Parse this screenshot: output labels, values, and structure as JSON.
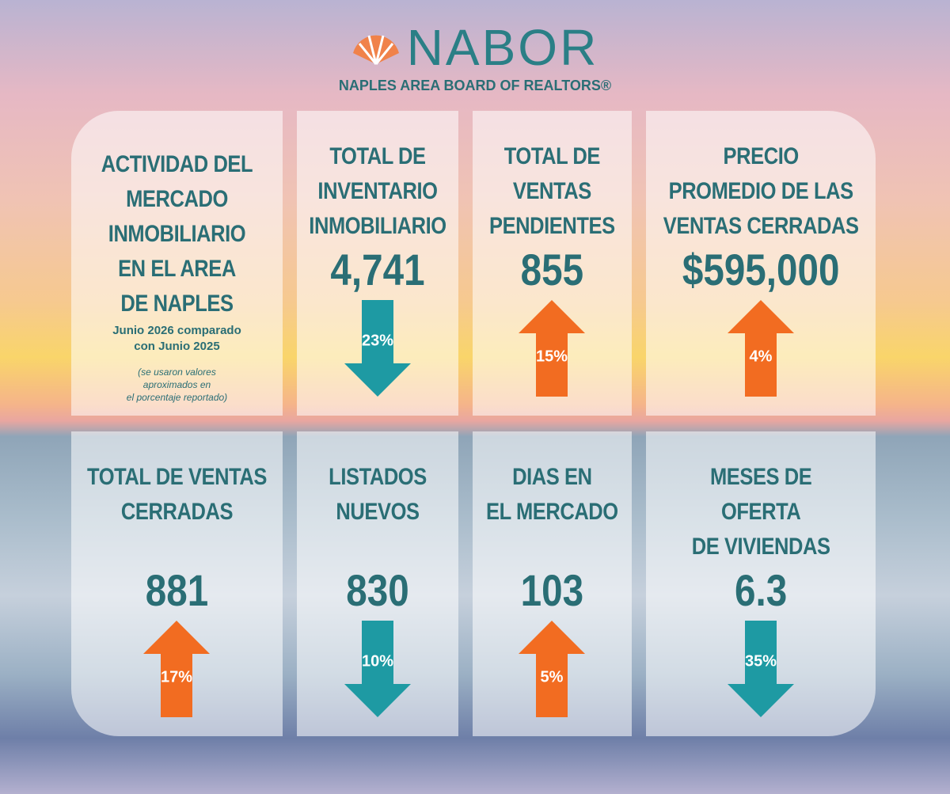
{
  "logo": {
    "name": "NABOR",
    "subtitle": "NAPLES AREA BOARD OF REALTORS®"
  },
  "intro": {
    "title": [
      "ACTIVIDAD DEL",
      "MERCADO",
      "INMOBILIARIO",
      "EN EL AREA",
      "DE NAPLES"
    ],
    "subtitle": [
      "Junio 2026 comparado",
      "con Junio 2025"
    ],
    "note": [
      "(se usaron valores",
      "aproximados en",
      "el porcentaje reportado)"
    ]
  },
  "cards": [
    {
      "title": [
        "TOTAL DE",
        "INVENTARIO",
        "INMOBILIARIO"
      ],
      "value": "4,741",
      "change": "23%",
      "direction": "down"
    },
    {
      "title": [
        "TOTAL DE",
        "VENTAS",
        "PENDIENTES"
      ],
      "value": "855",
      "change": "15%",
      "direction": "up"
    },
    {
      "title": [
        "PRECIO",
        "PROMEDIO DE LAS",
        "VENTAS CERRADAS"
      ],
      "value": "$595,000",
      "change": "4%",
      "direction": "up"
    },
    {
      "title": [
        "TOTAL DE VENTAS",
        "CERRADAS"
      ],
      "value": "881",
      "change": "17%",
      "direction": "up"
    },
    {
      "title": [
        "LISTADOS",
        "NUEVOS"
      ],
      "value": "830",
      "change": "10%",
      "direction": "down"
    },
    {
      "title": [
        "DIAS EN",
        "EL MERCADO"
      ],
      "value": "103",
      "change": "5%",
      "direction": "up"
    },
    {
      "title": [
        "MESES DE",
        "OFERTA",
        "DE VIVIENDAS"
      ],
      "value": "6.3",
      "change": "35%",
      "direction": "down"
    }
  ]
}
